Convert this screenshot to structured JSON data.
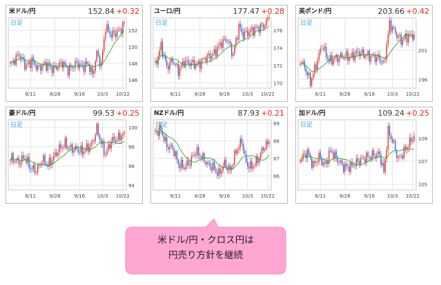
{
  "colors": {
    "up": "#e2231a",
    "down": "#2a56c8",
    "ma": "#2aa52a",
    "grid": "#e4e4e4",
    "label": "#38a6d6",
    "callout": "#ffa6d2"
  },
  "callout": {
    "line1": "米ドル/円・クロス円は",
    "line2": "円売り方針を継続"
  },
  "chart_data": [
    {
      "type": "candlestick",
      "title": "米ドル/円",
      "price": "152.84",
      "change": "+0.32",
      "period_label": "日足",
      "x_ticks": [
        "8/11",
        "8/28",
        "9/16",
        "10/3",
        "10/22"
      ],
      "y_ticks": [
        "146",
        "148",
        "150",
        "152"
      ],
      "ylim": [
        145,
        153.5
      ],
      "keypoints": [
        [
          0,
          147.8
        ],
        [
          6,
          149.1
        ],
        [
          11,
          147.6
        ],
        [
          15,
          148.3
        ],
        [
          19,
          147.4
        ],
        [
          24,
          147.9
        ],
        [
          30,
          147.3
        ],
        [
          36,
          148.1
        ],
        [
          40,
          147.2
        ],
        [
          46,
          148.0
        ],
        [
          50,
          147.6
        ],
        [
          54,
          147.9
        ],
        [
          57,
          146.6
        ],
        [
          60,
          149.2
        ],
        [
          63,
          147.8
        ],
        [
          66,
          152.4
        ],
        [
          70,
          151.4
        ],
        [
          75,
          151.9
        ],
        [
          79,
          152.6
        ]
      ],
      "last_close": 152.84
    },
    {
      "type": "candlestick",
      "title": "ユーロ/円",
      "price": "177.47",
      "change": "+0.28",
      "period_label": "日足",
      "x_ticks": [
        "8/11",
        "8/28",
        "9/16",
        "10/3",
        "10/22"
      ],
      "y_ticks": [
        "170",
        "172",
        "174",
        "176"
      ],
      "ylim": [
        169.4,
        177.4
      ],
      "keypoints": [
        [
          0,
          172.0
        ],
        [
          4,
          174.2
        ],
        [
          8,
          171.8
        ],
        [
          12,
          172.6
        ],
        [
          16,
          171.4
        ],
        [
          20,
          172.4
        ],
        [
          25,
          172.2
        ],
        [
          30,
          172.1
        ],
        [
          35,
          172.9
        ],
        [
          40,
          173.2
        ],
        [
          46,
          174.6
        ],
        [
          50,
          175.0
        ],
        [
          54,
          173.2
        ],
        [
          58,
          176.4
        ],
        [
          61,
          175.5
        ],
        [
          65,
          175.8
        ],
        [
          70,
          176.2
        ],
        [
          75,
          176.5
        ],
        [
          79,
          177.3
        ]
      ],
      "last_close": 177.47
    },
    {
      "type": "candlestick",
      "title": "英ポンド/円",
      "price": "203.66",
      "change": "+0.42",
      "period_label": "日足",
      "x_ticks": [
        "8/11",
        "8/28",
        "9/16",
        "10/3",
        "10/22"
      ],
      "y_ticks": [
        "196",
        "201"
      ],
      "ylim": [
        194.5,
        206.5
      ],
      "keypoints": [
        [
          0,
          199.3
        ],
        [
          4,
          197.6
        ],
        [
          7,
          195.5
        ],
        [
          11,
          198.5
        ],
        [
          15,
          201.8
        ],
        [
          20,
          199.2
        ],
        [
          25,
          199.6
        ],
        [
          30,
          200.0
        ],
        [
          35,
          199.8
        ],
        [
          40,
          200.6
        ],
        [
          45,
          200.2
        ],
        [
          50,
          199.8
        ],
        [
          55,
          199.6
        ],
        [
          58,
          198.4
        ],
        [
          62,
          205.5
        ],
        [
          66,
          204.0
        ],
        [
          70,
          202.6
        ],
        [
          75,
          203.4
        ],
        [
          79,
          203.6
        ]
      ],
      "last_close": 203.66
    },
    {
      "type": "candlestick",
      "title": "豪ドル/円",
      "price": "99.53",
      "change": "+0.25",
      "period_label": "日足",
      "x_ticks": [
        "8/11",
        "8/28",
        "9/16",
        "10/3",
        "10/22"
      ],
      "y_ticks": [
        "94",
        "96",
        "98",
        "100"
      ],
      "ylim": [
        93.5,
        100.8
      ],
      "keypoints": [
        [
          0,
          96.8
        ],
        [
          6,
          96.4
        ],
        [
          10,
          96.9
        ],
        [
          14,
          95.8
        ],
        [
          18,
          95.5
        ],
        [
          22,
          96.7
        ],
        [
          26,
          96.1
        ],
        [
          30,
          96.9
        ],
        [
          34,
          97.8
        ],
        [
          38,
          98.3
        ],
        [
          42,
          97.8
        ],
        [
          46,
          97.7
        ],
        [
          50,
          97.5
        ],
        [
          54,
          97.9
        ],
        [
          57,
          98.4
        ],
        [
          60,
          99.9
        ],
        [
          63,
          98.4
        ],
        [
          66,
          97.2
        ],
        [
          70,
          98.6
        ],
        [
          75,
          98.9
        ],
        [
          79,
          99.5
        ]
      ],
      "last_close": 99.53
    },
    {
      "type": "candlestick",
      "title": "NZドル/円",
      "price": "87.93",
      "change": "+0.21",
      "period_label": "日足",
      "x_ticks": [
        "8/11",
        "8/28",
        "9/16",
        "10/3",
        "10/22"
      ],
      "y_ticks": [
        "86",
        "87",
        "88",
        "89"
      ],
      "ylim": [
        85.2,
        89.2
      ],
      "keypoints": [
        [
          0,
          88.5
        ],
        [
          4,
          88.6
        ],
        [
          8,
          87.7
        ],
        [
          12,
          87.6
        ],
        [
          16,
          86.7
        ],
        [
          20,
          86.5
        ],
        [
          24,
          86.8
        ],
        [
          28,
          87.4
        ],
        [
          32,
          87.1
        ],
        [
          36,
          86.7
        ],
        [
          40,
          86.5
        ],
        [
          44,
          86.1
        ],
        [
          48,
          86.7
        ],
        [
          52,
          86.3
        ],
        [
          56,
          87.4
        ],
        [
          60,
          88.0
        ],
        [
          63,
          86.7
        ],
        [
          67,
          86.5
        ],
        [
          71,
          86.9
        ],
        [
          75,
          87.6
        ],
        [
          79,
          87.9
        ]
      ],
      "last_close": 87.93
    },
    {
      "type": "candlestick",
      "title": "加ドル/円",
      "price": "109.24",
      "change": "+0.25",
      "period_label": "日足",
      "x_ticks": [
        "8/11",
        "8/28",
        "9/16",
        "10/3",
        "10/22"
      ],
      "y_ticks": [
        "105",
        "107",
        "109"
      ],
      "ylim": [
        104.5,
        110.6
      ],
      "keypoints": [
        [
          0,
          107.2
        ],
        [
          5,
          107.8
        ],
        [
          9,
          106.6
        ],
        [
          13,
          107.4
        ],
        [
          17,
          106.6
        ],
        [
          21,
          107.9
        ],
        [
          25,
          107.3
        ],
        [
          30,
          106.5
        ],
        [
          35,
          106.5
        ],
        [
          40,
          107.0
        ],
        [
          45,
          107.3
        ],
        [
          50,
          107.5
        ],
        [
          55,
          107.6
        ],
        [
          58,
          106.0
        ],
        [
          61,
          109.6
        ],
        [
          64,
          108.8
        ],
        [
          68,
          107.2
        ],
        [
          72,
          107.8
        ],
        [
          76,
          108.6
        ],
        [
          79,
          109.2
        ]
      ],
      "last_close": 109.24
    }
  ]
}
